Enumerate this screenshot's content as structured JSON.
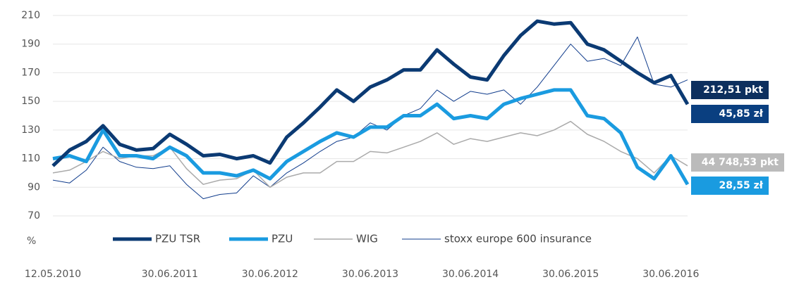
{
  "chart_data": {
    "type": "line",
    "y_label": "%",
    "categories": [
      "12.05.2010",
      null,
      null,
      null,
      null,
      null,
      null,
      "30.06.2011",
      null,
      null,
      null,
      null,
      null,
      "30.06.2012",
      null,
      null,
      null,
      null,
      null,
      "30.06.2013",
      null,
      null,
      null,
      null,
      null,
      "30.06.2014",
      null,
      null,
      null,
      null,
      null,
      "30.06.2015",
      null,
      null,
      null,
      null,
      null,
      "30.06.2016",
      null
    ],
    "series": [
      {
        "name": "stoxx europe 600 insurance",
        "color": "#103c8c",
        "width": 1,
        "values": [
          95,
          93,
          102,
          118,
          108,
          104,
          103,
          105,
          92,
          82,
          85,
          86,
          98,
          90,
          100,
          107,
          115,
          122,
          125,
          135,
          130,
          140,
          145,
          158,
          150,
          157,
          155,
          158,
          148,
          160,
          175,
          190,
          178,
          180,
          175,
          195,
          162,
          160,
          165
        ]
      },
      {
        "name": "WIG",
        "color": "#aaaaaa",
        "width": 1.5,
        "values": [
          100,
          102,
          108,
          115,
          110,
          112,
          112,
          118,
          103,
          92,
          95,
          96,
          102,
          90,
          97,
          100,
          100,
          108,
          108,
          115,
          114,
          118,
          122,
          128,
          120,
          124,
          122,
          125,
          128,
          126,
          130,
          136,
          127,
          122,
          115,
          110,
          100,
          112,
          105
        ]
      },
      {
        "name": "PZU",
        "color": "#1a9be0",
        "width": 5,
        "values": [
          110,
          112,
          108,
          130,
          112,
          112,
          110,
          118,
          112,
          100,
          100,
          98,
          102,
          96,
          108,
          115,
          122,
          128,
          125,
          132,
          132,
          140,
          140,
          148,
          138,
          140,
          138,
          148,
          152,
          155,
          158,
          158,
          140,
          138,
          128,
          104,
          96,
          112,
          92
        ]
      },
      {
        "name": "PZU TSR",
        "color": "#0b3a73",
        "width": 5,
        "values": [
          105,
          116,
          122,
          133,
          120,
          116,
          117,
          127,
          120,
          112,
          113,
          110,
          112,
          107,
          125,
          135,
          146,
          158,
          150,
          160,
          165,
          172,
          172,
          186,
          176,
          167,
          165,
          182,
          196,
          206,
          204,
          205,
          190,
          186,
          178,
          170,
          163,
          168,
          148
        ]
      }
    ],
    "legend_order": [
      3,
      2,
      1,
      0
    ],
    "end_labels": [
      {
        "text": "212,51 pkt",
        "color": "#0d2f5e"
      },
      {
        "text": "45,85 zł",
        "color": "#0a3f80"
      },
      {
        "text": "44 748,53 pkt",
        "color": "#bbbbbb"
      },
      {
        "text": "28,55 zł",
        "color": "#1a9be0"
      }
    ],
    "ylim": [
      70,
      210
    ],
    "yticks": [
      70,
      90,
      110,
      130,
      150,
      170,
      190,
      210
    ],
    "grid": true
  }
}
